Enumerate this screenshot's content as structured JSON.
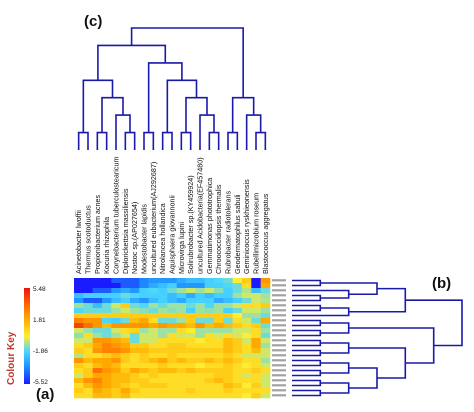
{
  "panels": {
    "a": "(a)",
    "b": "(b)",
    "c": "(c)"
  },
  "colour_key": {
    "title": "Colour Key",
    "ticks": [
      "5.48",
      "1.81",
      "-1.86",
      "-5.52"
    ]
  },
  "chart_data": {
    "type": "heatmap",
    "title": "",
    "columns": [
      "Acinetobacter lwoffii",
      "Thermus scotoductus",
      "Propionibacterium acnes",
      "Kocuria rhizophila",
      "Corynebacterium tuberculostearicum",
      "Diplorickettsia massiliensis",
      "Nostoc sp.(AP027654)",
      "Modestobacter lapidis",
      "uncultured eubacterium(AJ292687)",
      "Nitrolancea hollandica",
      "Aquisphaera giovannonii",
      "Microvirga lupini",
      "Solirubrobacter sp.(KY459924)",
      "uncultured Acidobacteria(EF457480)",
      "Gemmatimonas phototrophica",
      "Chroococcidiopsis thermalis",
      "Rubrobacter radiotolerans",
      "Geodermatophilus sabuli",
      "Geminicoccus ryskhieonensis",
      "Rubellimicrobium roseum",
      "Blastococcus aggregatus"
    ],
    "row_count": 24,
    "value_range": [
      -5.52,
      5.48
    ],
    "palette": [
      "#1a1aff",
      "#1e90ff",
      "#4ad6ff",
      "#ffee33",
      "#ffb000",
      "#ff6a00",
      "#ee1111"
    ],
    "values": [
      [
        -5.5,
        -5.5,
        -5.5,
        -5.5,
        -4.5,
        -4.5,
        -4.5,
        -3.8,
        -3.5,
        -3.5,
        -3.5,
        -3.0,
        -2.5,
        -2.5,
        -2.0,
        -1.8,
        -1.5,
        0.0,
        1.0,
        -5.5,
        2.5
      ],
      [
        -5.5,
        -5.5,
        -5.5,
        -5.5,
        -5.5,
        -4.5,
        -4.5,
        -3.8,
        -3.0,
        -2.5,
        -2.0,
        -3.5,
        -3.5,
        -3.5,
        -2.0,
        -2.0,
        -1.8,
        -1.5,
        0.5,
        -5.5,
        2.0
      ],
      [
        -5.5,
        -5.5,
        -4.5,
        -4.5,
        -3.5,
        -3.0,
        -3.5,
        -2.0,
        -1.8,
        -2.0,
        -1.5,
        -1.0,
        -0.5,
        -1.0,
        -0.5,
        -1.2,
        -2.0,
        -1.5,
        -0.8,
        -2.5,
        -1.5
      ],
      [
        -2.5,
        -2.0,
        -2.0,
        -2.0,
        -2.0,
        -1.5,
        -1.8,
        -2.0,
        -2.0,
        -2.0,
        -2.5,
        -2.0,
        -3.0,
        -2.0,
        -2.5,
        -2.0,
        -2.0,
        -1.0,
        -0.5,
        -0.5,
        -1.0
      ],
      [
        -3.5,
        -4.5,
        -4.5,
        -3.5,
        -2.5,
        -2.0,
        -3.0,
        -3.5,
        -2.5,
        -2.0,
        -2.5,
        -3.0,
        -2.0,
        -2.0,
        -2.0,
        -3.0,
        -2.5,
        -2.0,
        -1.5,
        -0.5,
        -0.8
      ],
      [
        -1.0,
        -1.5,
        -2.5,
        -1.5,
        -0.5,
        1.0,
        -1.5,
        -1.8,
        -1.0,
        -1.5,
        -1.0,
        -1.0,
        -1.5,
        -1.0,
        -1.8,
        -1.0,
        -1.0,
        -0.5,
        0.5,
        0.5,
        1.0
      ],
      [
        -1.8,
        -1.5,
        -1.5,
        -1.5,
        -1.0,
        -0.5,
        -1.0,
        -1.2,
        -1.5,
        -1.0,
        -1.2,
        -1.0,
        -2.0,
        -1.0,
        -1.2,
        -1.0,
        -2.0,
        -1.5,
        -0.5,
        -0.5,
        -1.0
      ],
      [
        1.0,
        1.0,
        1.0,
        1.0,
        1.0,
        1.0,
        1.0,
        1.0,
        1.0,
        1.0,
        1.0,
        1.0,
        1.0,
        1.0,
        1.0,
        1.0,
        1.0,
        0.0,
        -1.0,
        -1.0,
        -1.5
      ],
      [
        3.0,
        2.5,
        2.5,
        -1.8,
        -2.0,
        -1.5,
        1.5,
        2.0,
        0.5,
        -1.5,
        -1.5,
        -1.0,
        1.0,
        -1.5,
        -1.5,
        1.0,
        -1.5,
        0.5,
        -0.5,
        -1.5,
        2.0
      ],
      [
        4.5,
        3.5,
        2.5,
        1.5,
        2.5,
        2.5,
        2.5,
        2.5,
        2.0,
        2.5,
        2.0,
        2.0,
        1.5,
        2.5,
        1.5,
        2.0,
        1.5,
        1.0,
        0.5,
        1.0,
        -1.5
      ],
      [
        -0.5,
        -1.0,
        -1.5,
        -1.5,
        -0.5,
        0.5,
        0.8,
        -1.0,
        -0.5,
        -1.0,
        -1.0,
        0.5,
        0.0,
        -1.0,
        -1.0,
        -1.0,
        -1.0,
        -0.5,
        -0.5,
        0.5,
        -1.0
      ],
      [
        -1.2,
        0.5,
        -1.0,
        -1.5,
        -1.0,
        -0.5,
        -1.5,
        -0.5,
        -0.5,
        -1.0,
        0.5,
        -0.5,
        -0.5,
        -1.0,
        0.5,
        -0.5,
        0.5,
        -0.5,
        0.0,
        0.5,
        -1.5
      ],
      [
        -0.5,
        -0.5,
        2.5,
        2.5,
        2.0,
        1.5,
        -1.5,
        -0.5,
        -0.5,
        0.5,
        0.5,
        0.5,
        0.5,
        0.0,
        0.5,
        0.5,
        1.5,
        1.0,
        -0.5,
        2.0,
        -0.5
      ],
      [
        0.5,
        1.0,
        2.0,
        3.0,
        2.5,
        2.0,
        1.0,
        1.0,
        0.5,
        0.5,
        1.0,
        1.0,
        0.5,
        0.5,
        0.5,
        0.5,
        1.5,
        1.0,
        0.5,
        2.0,
        -1.0
      ],
      [
        1.0,
        0.5,
        2.5,
        3.0,
        3.0,
        2.5,
        1.5,
        1.5,
        1.0,
        1.0,
        1.0,
        1.0,
        1.0,
        1.0,
        1.0,
        1.0,
        1.5,
        1.0,
        0.5,
        1.5,
        -0.5
      ],
      [
        -0.8,
        0.5,
        0.5,
        1.0,
        1.5,
        1.0,
        0.5,
        1.0,
        0.5,
        0.5,
        1.0,
        0.5,
        0.5,
        0.5,
        0.5,
        0.5,
        1.0,
        0.5,
        -0.5,
        -0.5,
        -0.5
      ],
      [
        2.5,
        1.5,
        2.0,
        2.0,
        2.5,
        1.0,
        0.5,
        1.0,
        1.5,
        2.0,
        1.0,
        1.5,
        1.0,
        1.0,
        1.5,
        1.0,
        1.5,
        1.0,
        0.5,
        0.5,
        -1.0
      ],
      [
        1.0,
        0.5,
        1.5,
        2.0,
        1.5,
        0.5,
        0.5,
        0.5,
        0.5,
        1.0,
        0.5,
        0.5,
        0.5,
        0.0,
        0.5,
        0.5,
        1.0,
        0.5,
        0.0,
        0.5,
        -0.5
      ],
      [
        0.5,
        1.0,
        3.5,
        2.5,
        2.0,
        1.0,
        2.0,
        1.5,
        1.0,
        1.5,
        1.5,
        1.0,
        1.5,
        1.0,
        1.0,
        1.0,
        1.0,
        0.5,
        0.5,
        1.0,
        0.5
      ],
      [
        -0.5,
        1.0,
        2.0,
        2.0,
        1.5,
        1.5,
        1.0,
        0.5,
        1.0,
        0.5,
        0.5,
        0.5,
        0.5,
        0.5,
        0.5,
        1.0,
        1.0,
        0.5,
        -0.5,
        0.5,
        -0.5
      ],
      [
        1.5,
        2.5,
        3.0,
        2.0,
        1.5,
        1.5,
        1.0,
        1.0,
        0.5,
        0.5,
        0.5,
        0.5,
        0.5,
        0.5,
        1.0,
        1.5,
        1.0,
        0.5,
        0.5,
        0.5,
        -0.5
      ],
      [
        0.5,
        1.5,
        2.5,
        2.0,
        1.5,
        1.0,
        0.5,
        1.0,
        1.0,
        1.0,
        0.5,
        0.5,
        0.5,
        0.5,
        0.5,
        0.5,
        1.5,
        1.0,
        0.0,
        1.0,
        -0.5
      ],
      [
        1.0,
        0.5,
        2.0,
        1.5,
        1.0,
        2.0,
        1.0,
        0.5,
        0.5,
        0.5,
        0.5,
        0.5,
        1.0,
        0.5,
        0.5,
        0.5,
        1.0,
        0.5,
        0.5,
        0.5,
        0.5
      ],
      [
        0.5,
        0.5,
        1.5,
        1.5,
        1.0,
        1.5,
        0.5,
        0.5,
        0.5,
        0.5,
        0.5,
        0.5,
        0.5,
        0.5,
        0.5,
        0.5,
        0.5,
        0.5,
        0.0,
        1.0,
        -0.5
      ]
    ]
  }
}
